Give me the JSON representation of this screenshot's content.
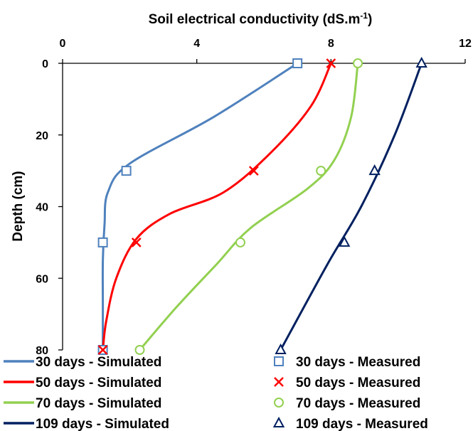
{
  "chart_data": {
    "type": "line",
    "title": "",
    "xlabel": "Soil electrical conductivity (dS.m",
    "xlabel_sup": "-1",
    "xlabel_suffix": ")",
    "ylabel": "Depth (cm)",
    "xlim": [
      0,
      12
    ],
    "ylim": [
      0,
      80
    ],
    "y_inverted": true,
    "x_axis_position": "top",
    "x_ticks": [
      0,
      4,
      8,
      12
    ],
    "y_ticks": [
      0,
      20,
      40,
      60,
      80
    ],
    "grid": false,
    "legend_position": "bottom",
    "series": [
      {
        "name": "30 days - Simulated",
        "kind": "simulated",
        "color": "#4f81bd",
        "points": [
          [
            7.0,
            0
          ],
          [
            4.5,
            15
          ],
          [
            2.0,
            28
          ],
          [
            1.35,
            36
          ],
          [
            1.25,
            45
          ],
          [
            1.2,
            55
          ],
          [
            1.2,
            68
          ],
          [
            1.2,
            80
          ]
        ]
      },
      {
        "name": "50 days - Simulated",
        "kind": "simulated",
        "color": "#ff0000",
        "points": [
          [
            8.0,
            0
          ],
          [
            7.4,
            12
          ],
          [
            6.2,
            25
          ],
          [
            4.8,
            36
          ],
          [
            3.2,
            42
          ],
          [
            2.2,
            49
          ],
          [
            1.6,
            60
          ],
          [
            1.3,
            72
          ],
          [
            1.2,
            80
          ]
        ]
      },
      {
        "name": "70 days - Simulated",
        "kind": "simulated",
        "color": "#92d050",
        "points": [
          [
            8.8,
            0
          ],
          [
            8.6,
            15
          ],
          [
            8.1,
            27
          ],
          [
            7.3,
            35
          ],
          [
            5.6,
            46
          ],
          [
            4.6,
            56
          ],
          [
            3.4,
            68
          ],
          [
            2.3,
            80
          ]
        ]
      },
      {
        "name": "109 days - Simulated",
        "kind": "simulated",
        "color": "#002060",
        "points": [
          [
            10.7,
            0
          ],
          [
            9.9,
            20
          ],
          [
            8.9,
            40
          ],
          [
            7.9,
            56
          ],
          [
            6.5,
            80
          ]
        ]
      },
      {
        "name": "30 days - Measured",
        "kind": "measured",
        "marker": "square",
        "color": "#4f81bd",
        "points": [
          [
            7.0,
            0
          ],
          [
            1.9,
            30
          ],
          [
            1.2,
            50
          ],
          [
            1.2,
            80
          ]
        ]
      },
      {
        "name": "50 days - Measured",
        "kind": "measured",
        "marker": "x",
        "color": "#ff0000",
        "points": [
          [
            8.0,
            0
          ],
          [
            5.7,
            30
          ],
          [
            2.2,
            50
          ],
          [
            1.2,
            80
          ]
        ]
      },
      {
        "name": "70 days - Measured",
        "kind": "measured",
        "marker": "circle",
        "color": "#92d050",
        "points": [
          [
            8.8,
            0
          ],
          [
            7.7,
            30
          ],
          [
            5.3,
            50
          ],
          [
            2.3,
            80
          ]
        ]
      },
      {
        "name": "109 days - Measured",
        "kind": "measured",
        "marker": "triangle",
        "color": "#002060",
        "points": [
          [
            10.7,
            0
          ],
          [
            9.3,
            30
          ],
          [
            8.4,
            50
          ],
          [
            6.5,
            80
          ]
        ]
      }
    ]
  }
}
